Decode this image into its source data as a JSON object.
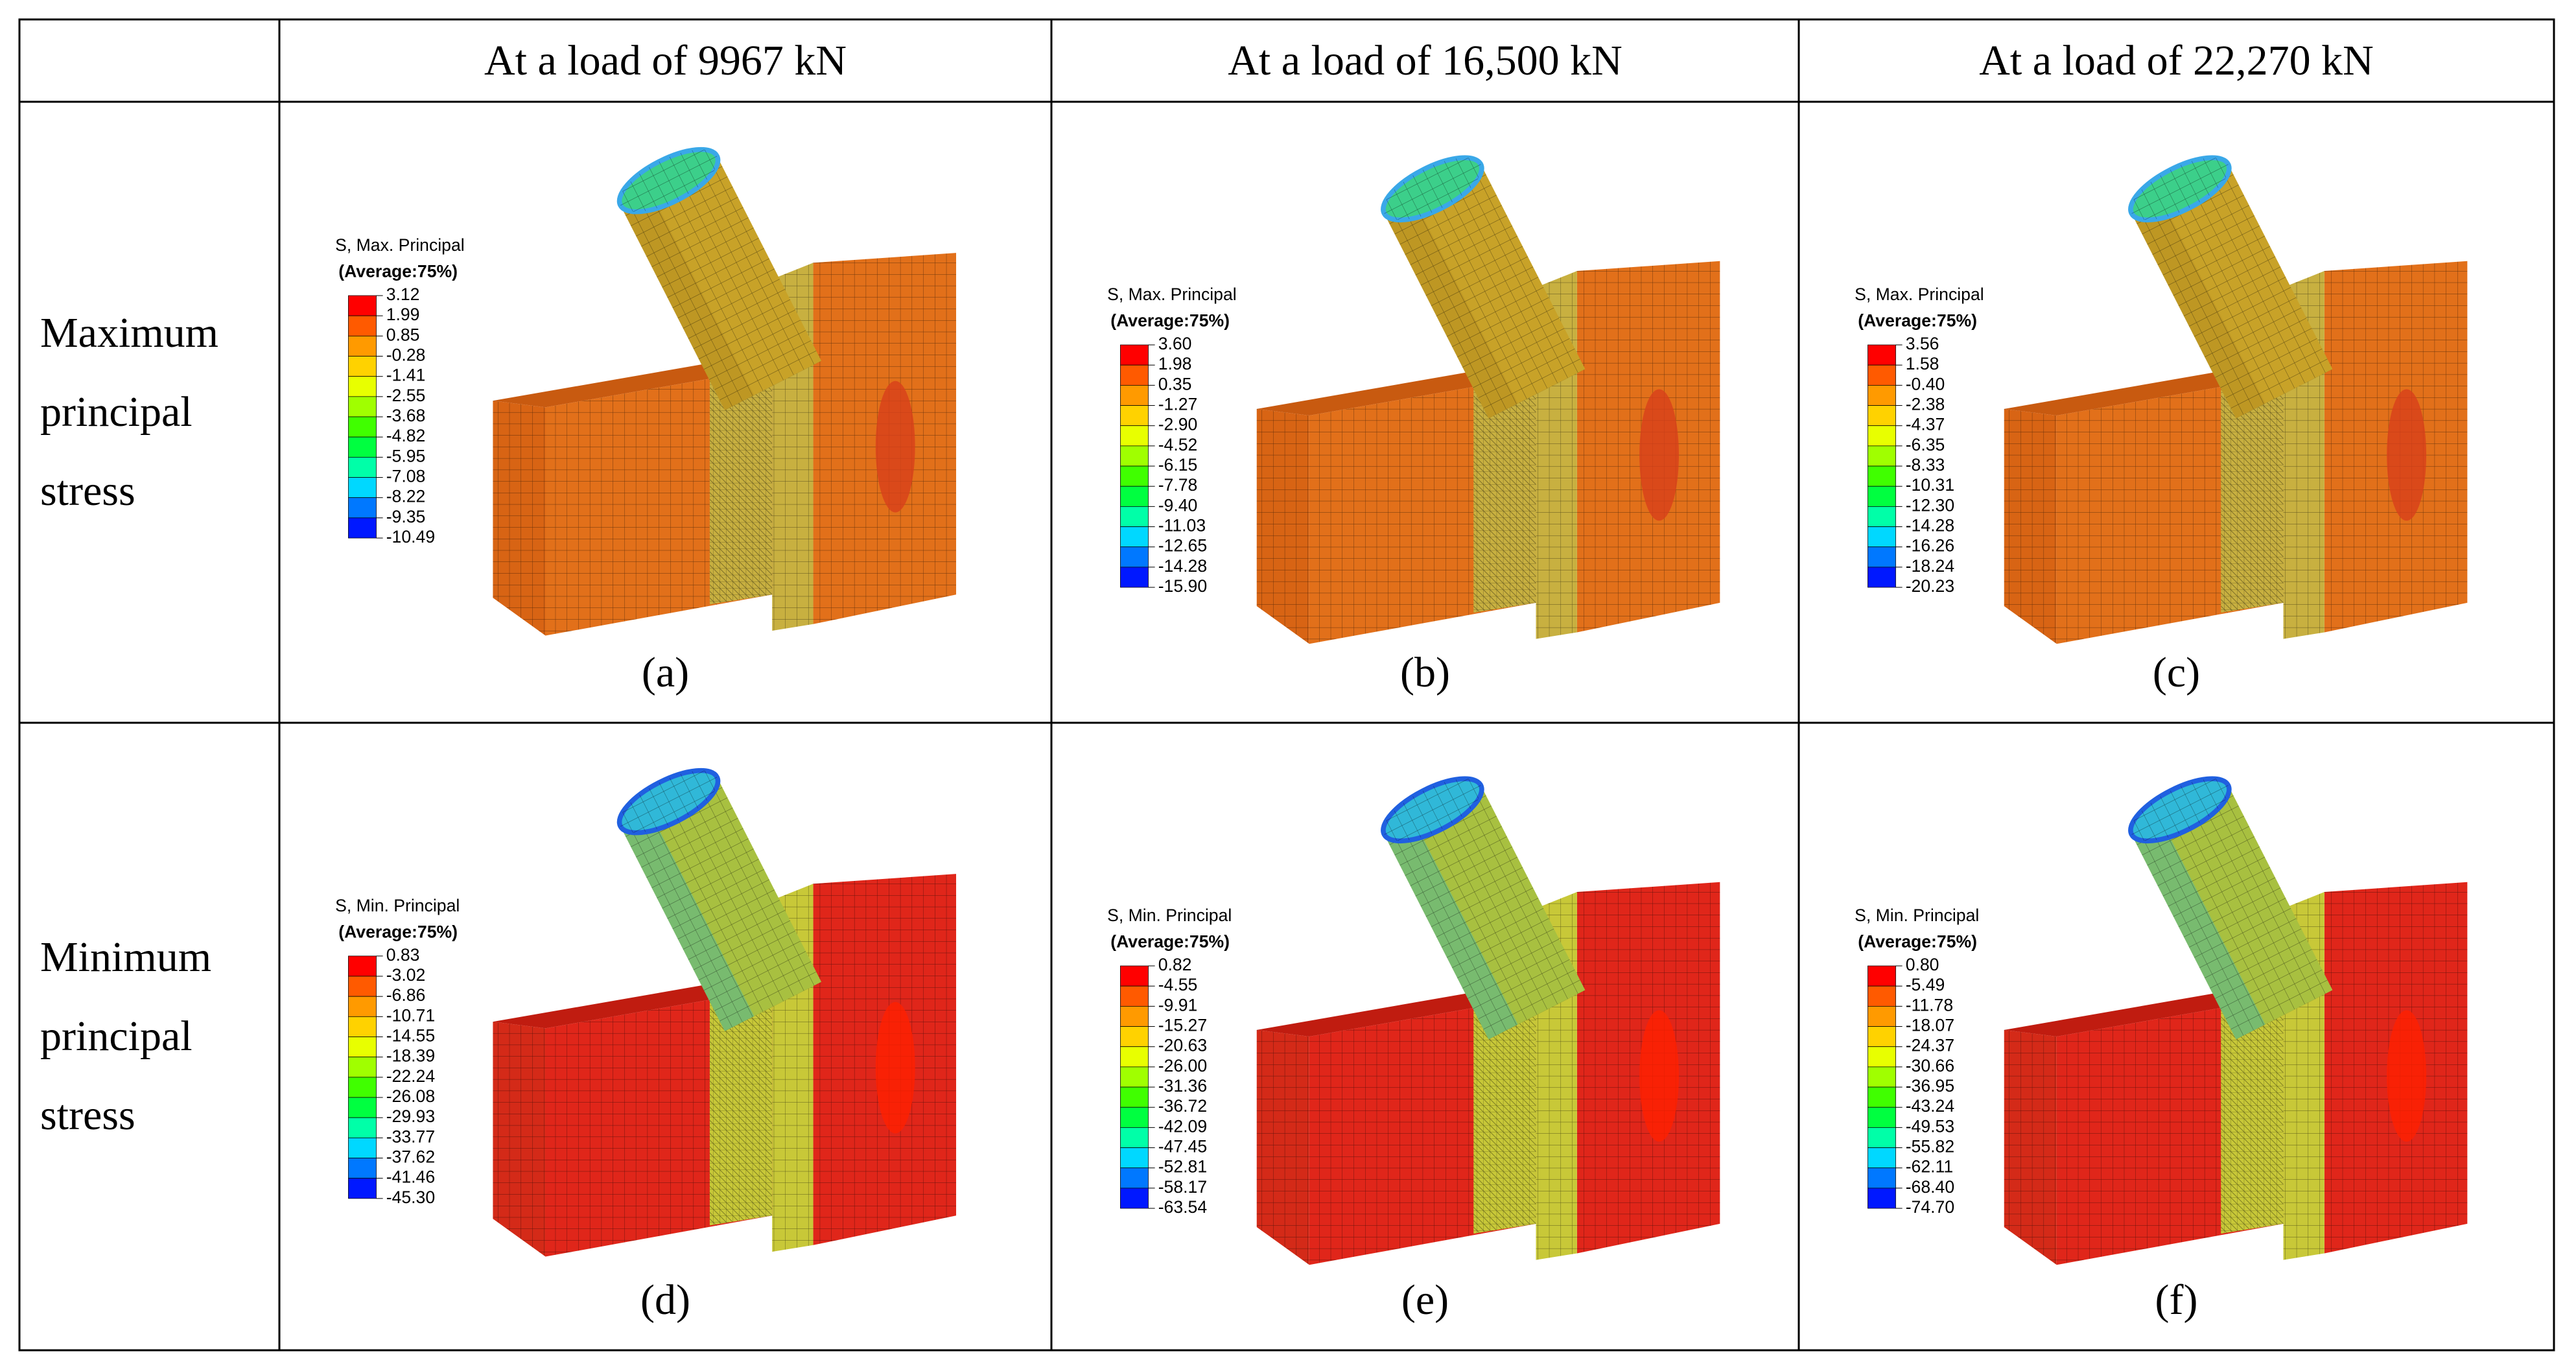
{
  "table": {
    "header": [
      "At a load of 9967 kN",
      "At a load of 16,500 kN",
      "At a load of 22,270 kN"
    ],
    "rows": [
      {
        "label": "Maximum principal stress",
        "panels": [
          {
            "legend_title": "S, Max. Principal",
            "legend_subtitle": "(Average:75%)",
            "legend_values": [
              "3.12",
              "1.99",
              "0.85",
              "-0.28",
              "-1.41",
              "-2.55",
              "-3.68",
              "-4.82",
              "-5.95",
              "-7.08",
              "-8.22",
              "-9.35",
              "-10.49"
            ],
            "caption": "(a)"
          },
          {
            "legend_title": "S, Max. Principal",
            "legend_subtitle": "(Average:75%)",
            "legend_values": [
              "3.60",
              "1.98",
              "0.35",
              "-1.27",
              "-2.90",
              "-4.52",
              "-6.15",
              "-7.78",
              "-9.40",
              "-11.03",
              "-12.65",
              "-14.28",
              "-15.90"
            ],
            "caption": "(b)"
          },
          {
            "legend_title": "S, Max. Principal",
            "legend_subtitle": "(Average:75%)",
            "legend_values": [
              "3.56",
              "1.58",
              "-0.40",
              "-2.38",
              "-4.37",
              "-6.35",
              "-8.33",
              "-10.31",
              "-12.30",
              "-14.28",
              "-16.26",
              "-18.24",
              "-20.23"
            ],
            "caption": "(c)"
          }
        ]
      },
      {
        "label": "Minimum principal stress",
        "panels": [
          {
            "legend_title": "S, Min. Principal",
            "legend_subtitle": "(Average:75%)",
            "legend_values": [
              "0.83",
              "-3.02",
              "-6.86",
              "-10.71",
              "-14.55",
              "-18.39",
              "-22.24",
              "-26.08",
              "-29.93",
              "-33.77",
              "-37.62",
              "-41.46",
              "-45.30"
            ],
            "caption": "(d)"
          },
          {
            "legend_title": "S, Min. Principal",
            "legend_subtitle": "(Average:75%)",
            "legend_values": [
              "0.82",
              "-4.55",
              "-9.91",
              "-15.27",
              "-20.63",
              "-26.00",
              "-31.36",
              "-36.72",
              "-42.09",
              "-47.45",
              "-52.81",
              "-58.17",
              "-63.54"
            ],
            "caption": "(e)"
          },
          {
            "legend_title": "S, Min. Principal",
            "legend_subtitle": "(Average:75%)",
            "legend_values": [
              "0.80",
              "-5.49",
              "-11.78",
              "-18.07",
              "-24.37",
              "-30.66",
              "-36.95",
              "-43.24",
              "-49.53",
              "-55.82",
              "-62.11",
              "-68.40",
              "-74.70"
            ],
            "caption": "(f)"
          }
        ]
      }
    ]
  }
}
